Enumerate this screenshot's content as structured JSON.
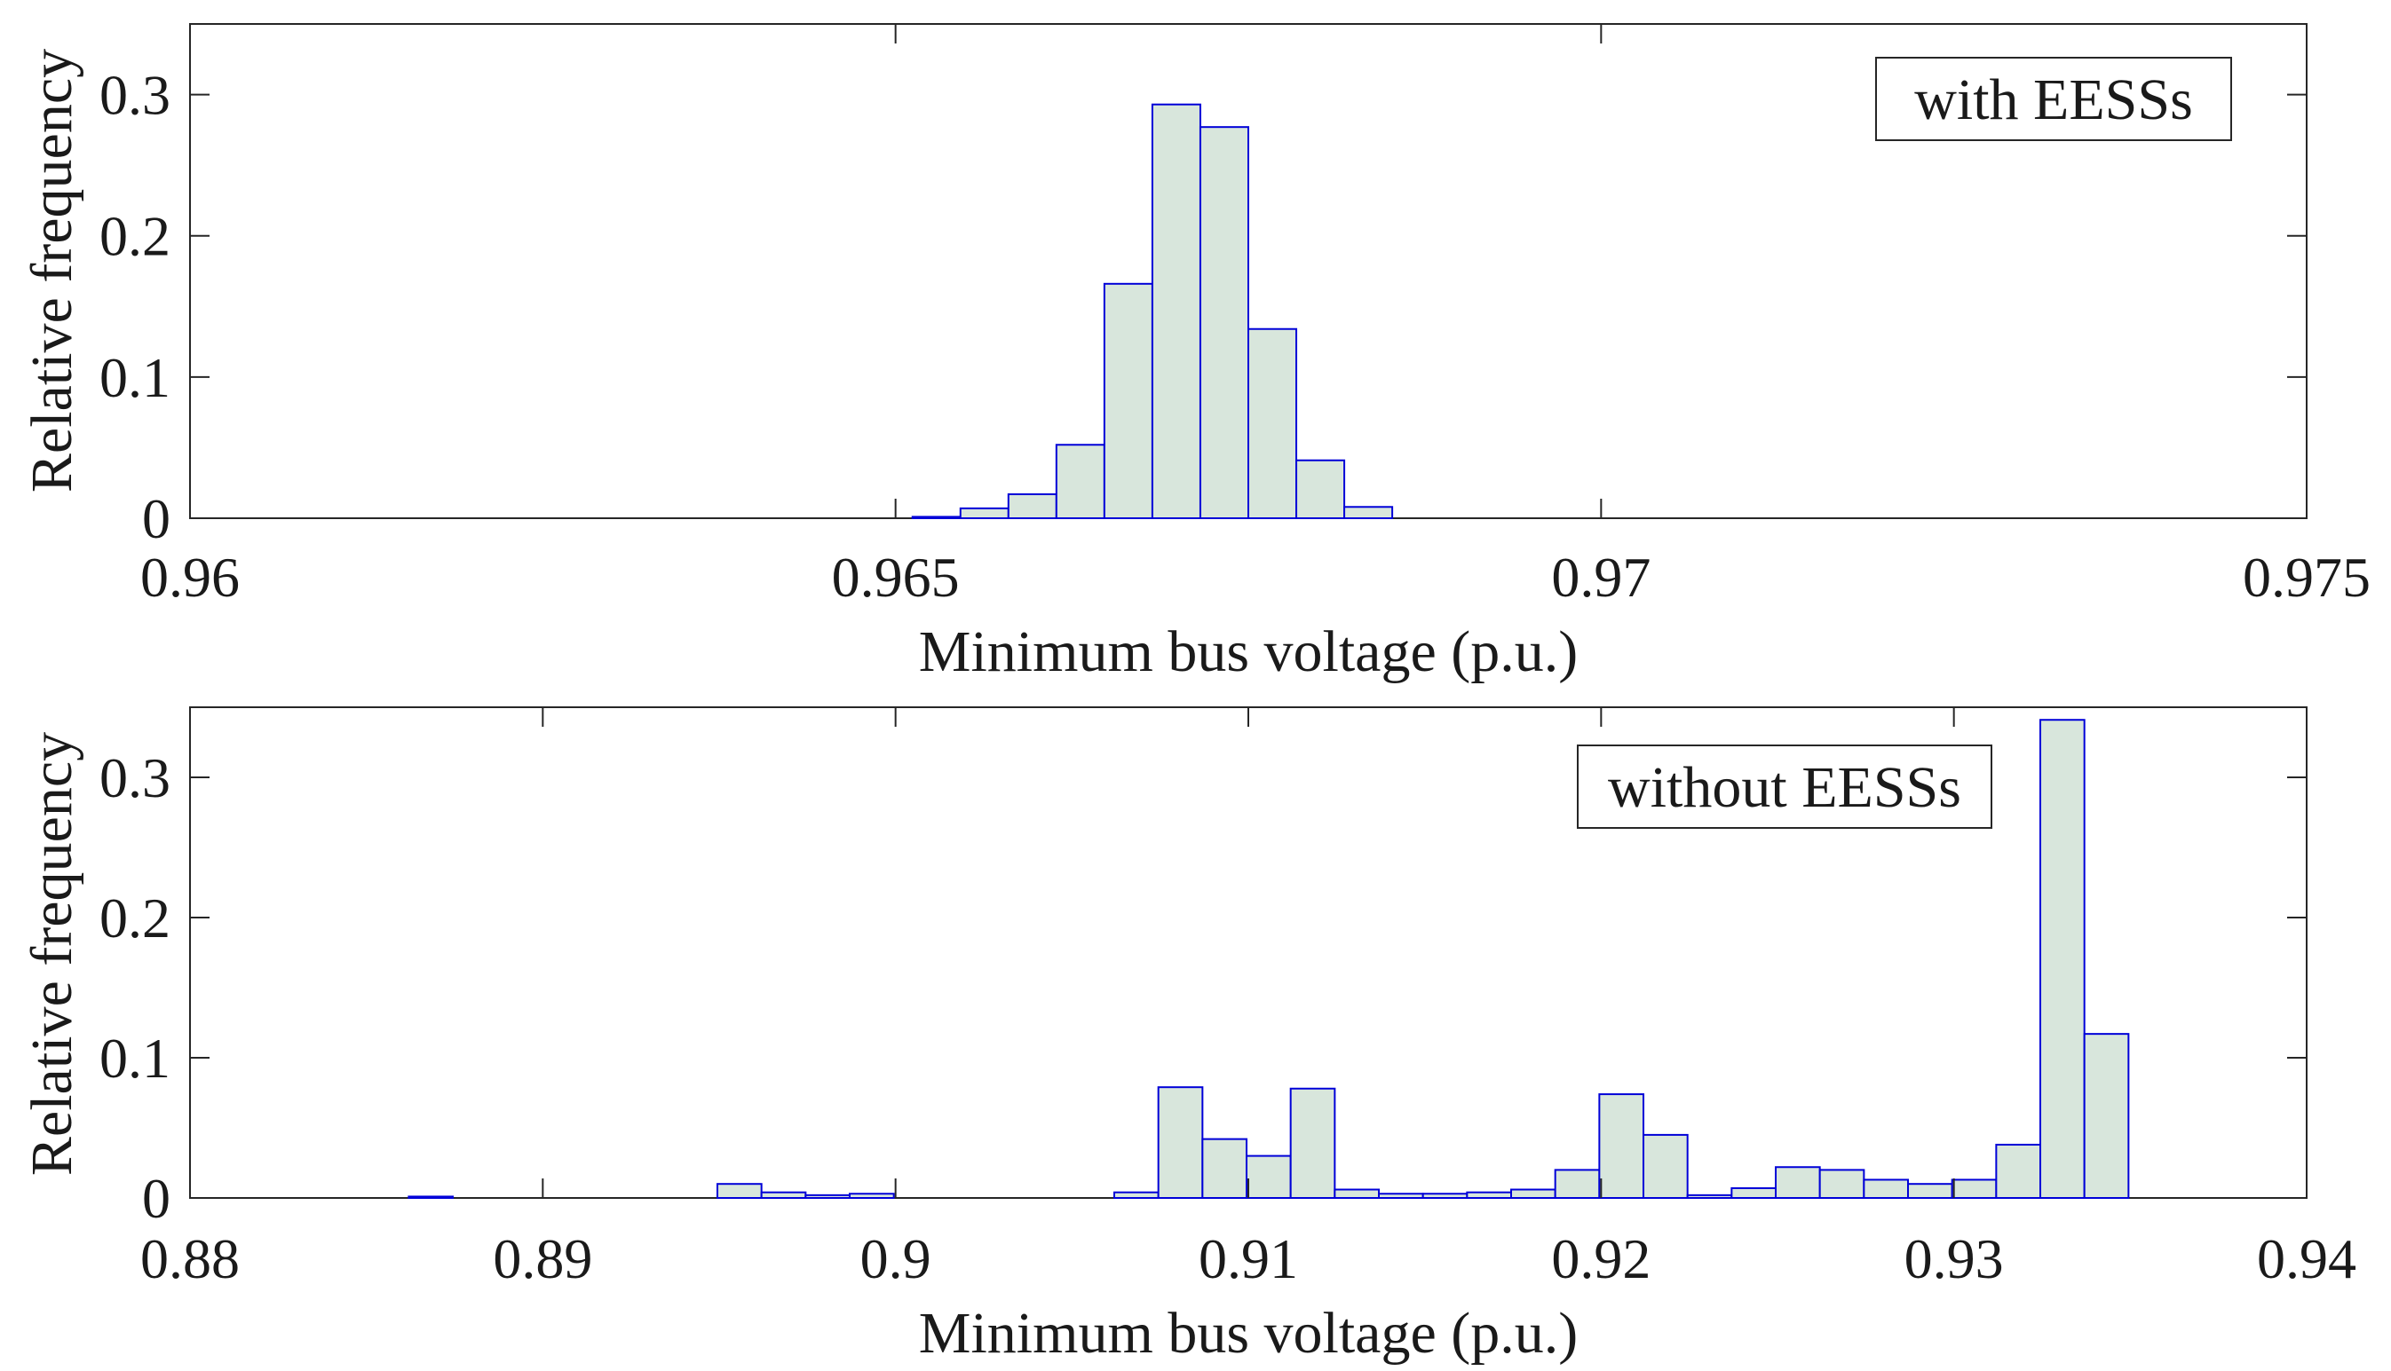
{
  "chart_data": [
    {
      "type": "bar",
      "subtype": "histogram",
      "legend": "with EESSs",
      "legend_position": "top-right",
      "xlabel": "Minimum bus voltage (p.u.)",
      "ylabel": "Relative frequency",
      "xlim": [
        0.96,
        0.975
      ],
      "ylim": [
        0,
        0.35
      ],
      "xticks": [
        0.96,
        0.965,
        0.97,
        0.975
      ],
      "xtick_labels": [
        "0.96",
        "0.965",
        "0.97",
        "0.975"
      ],
      "yticks": [
        0,
        0.1,
        0.2,
        0.3
      ],
      "ytick_labels": [
        "0",
        "0.1",
        "0.2",
        "0.3"
      ],
      "bin_width": 0.00034,
      "bin_left_edges": [
        0.96512,
        0.96546,
        0.9658,
        0.96614,
        0.96648,
        0.96682,
        0.96716,
        0.9675,
        0.96784,
        0.96818
      ],
      "values": [
        0.001,
        0.007,
        0.017,
        0.052,
        0.166,
        0.293,
        0.277,
        0.134,
        0.041,
        0.008
      ],
      "colors": {
        "fill": "#d8e6dc",
        "edge": "#0000d8"
      }
    },
    {
      "type": "bar",
      "subtype": "histogram",
      "legend": "without EESSs",
      "legend_position": "top-right",
      "xlabel": "Minimum bus voltage (p.u.)",
      "ylabel": "Relative frequency",
      "xlim": [
        0.88,
        0.94
      ],
      "ylim": [
        0,
        0.35
      ],
      "xticks": [
        0.88,
        0.89,
        0.9,
        0.91,
        0.92,
        0.93,
        0.94
      ],
      "xtick_labels": [
        "0.88",
        "0.89",
        "0.9",
        "0.91",
        "0.92",
        "0.93",
        "0.94"
      ],
      "yticks": [
        0,
        0.1,
        0.2,
        0.3
      ],
      "ytick_labels": [
        "0",
        "0.1",
        "0.2",
        "0.3"
      ],
      "bin_width": 0.00125,
      "bin_left_edges": [
        0.8862,
        0.89495,
        0.8962,
        0.89745,
        0.8987,
        0.9062,
        0.90745,
        0.9087,
        0.90995,
        0.9112,
        0.91245,
        0.9137,
        0.91495,
        0.9162,
        0.91745,
        0.9187,
        0.91995,
        0.9212,
        0.92245,
        0.9237,
        0.92495,
        0.9262,
        0.92745,
        0.9287,
        0.92995,
        0.9312,
        0.93245,
        0.9337
      ],
      "values": [
        0.001,
        0.01,
        0.004,
        0.002,
        0.003,
        0.004,
        0.079,
        0.042,
        0.03,
        0.078,
        0.006,
        0.003,
        0.003,
        0.004,
        0.006,
        0.02,
        0.074,
        0.045,
        0.002,
        0.007,
        0.022,
        0.02,
        0.013,
        0.01,
        0.013,
        0.038,
        0.341,
        0.117
      ],
      "colors": {
        "fill": "#d8e6dc",
        "edge": "#0000d8"
      }
    }
  ]
}
